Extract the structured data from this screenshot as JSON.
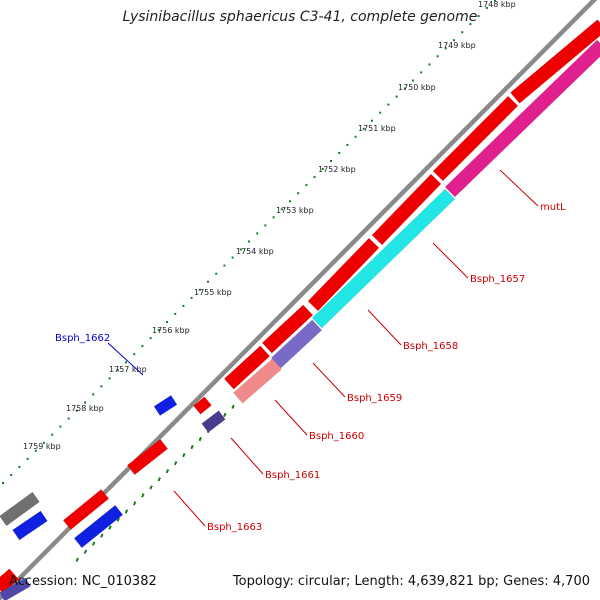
{
  "title": "Lysinibacillus sphaericus C3-41, complete genome",
  "footer": {
    "accession": "Accession: NC_010382",
    "info": "Topology: circular; Length: 4,639,821 bp; Genes: 4,700"
  },
  "colors": {
    "backbone": "#8a8a8a",
    "forward_cds": "#ee0000",
    "tick": "#1a7a1a",
    "label_fwd": "#cc0000",
    "label_rev": "#0000cc"
  },
  "ticks": [
    {
      "label": "1748 kbp"
    },
    {
      "label": "1749 kbp"
    },
    {
      "label": "1750 kbp"
    },
    {
      "label": "1751 kbp"
    },
    {
      "label": "1752 kbp"
    },
    {
      "label": "1753 kbp"
    },
    {
      "label": "1754 kbp"
    },
    {
      "label": "1755 kbp"
    },
    {
      "label": "1756 kbp"
    },
    {
      "label": "1757 kbp"
    },
    {
      "label": "1758 kbp"
    },
    {
      "label": "1759 kbp"
    }
  ],
  "gene_labels": [
    {
      "name": "mutL"
    },
    {
      "name": "Bsph_1657"
    },
    {
      "name": "Bsph_1658"
    },
    {
      "name": "Bsph_1659"
    },
    {
      "name": "Bsph_1660"
    },
    {
      "name": "Bsph_1661"
    },
    {
      "name": "Bsph_1663"
    },
    {
      "name": "Bsph_1662"
    }
  ]
}
